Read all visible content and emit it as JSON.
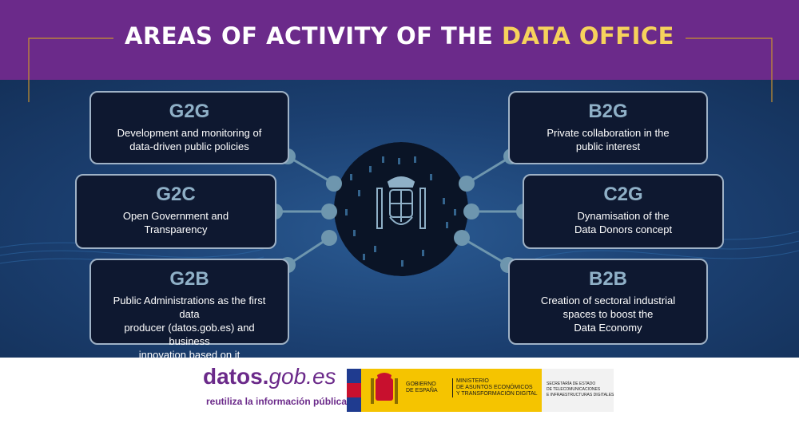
{
  "title": {
    "part1": "AREAS OF ACTIVITY OF THE ",
    "part2": "DATA OFFICE"
  },
  "colors": {
    "purple": "#6b2a8a",
    "yellow": "#f6d25c",
    "navy": "#0e1830",
    "steel": "#8fb0c7",
    "node": "#6e96ae"
  },
  "left_areas": [
    {
      "code": "G2G",
      "desc": "Development and monitoring of\ndata-driven public policies"
    },
    {
      "code": "G2C",
      "desc": "Open Government and\nTransparency"
    },
    {
      "code": "G2B",
      "desc": "Public Administrations as the first data\nproducer (datos.gob.es) and business\ninnovation based on it"
    }
  ],
  "right_areas": [
    {
      "code": "B2G",
      "desc": "Private collaboration in the\npublic interest"
    },
    {
      "code": "C2G",
      "desc": "Dynamisation of the\nData Donors concept"
    },
    {
      "code": "B2B",
      "desc": "Creation of sectoral industrial\nspaces to boost the\nData Economy"
    }
  ],
  "footer": {
    "logo_bold": "datos.",
    "logo_light": "gob.es",
    "logo_tagline": "reutiliza la información pública",
    "gov_line1": "GOBIERNO",
    "gov_line2": "DE ESPAÑA",
    "ministry_line1": "MINISTERIO",
    "ministry_line2": "DE ASUNTOS ECONÓMICOS",
    "ministry_line3": "Y TRANSFORMACIÓN DIGITAL",
    "secretariat_line1": "SECRETARÍA DE ESTADO",
    "secretariat_line2": "DE TELECOMUNICACIONES",
    "secretariat_line3": "E INFRAESTRUCTURAS DIGITALES"
  }
}
